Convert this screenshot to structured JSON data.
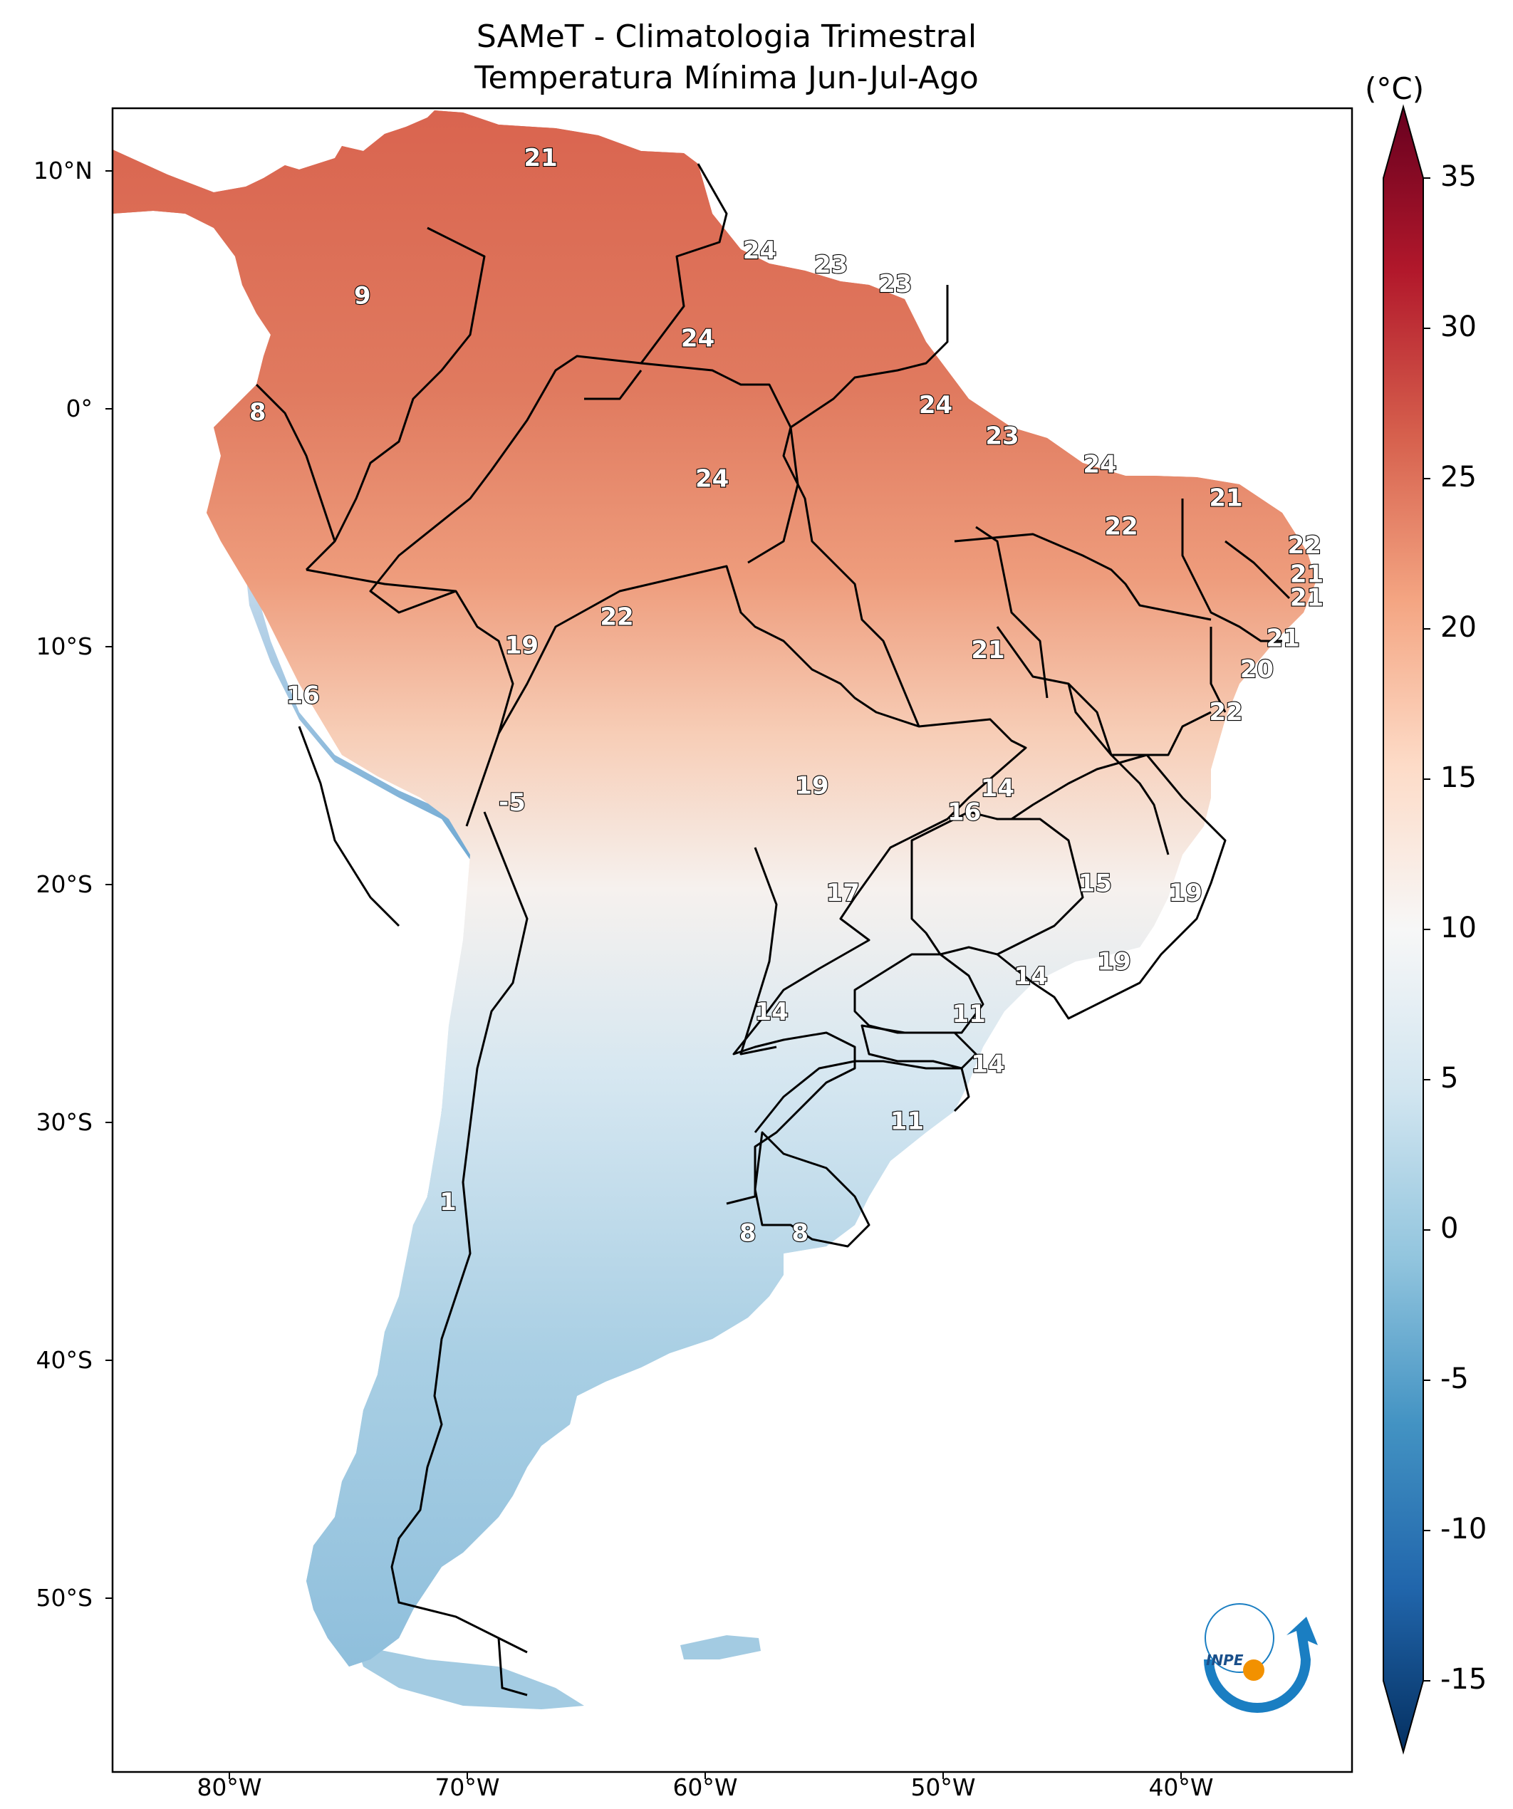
{
  "title": {
    "line1": "SAMeT - Climatologia Trimestral",
    "line2": "Temperatura Mínima   Jun-Jul-Ago"
  },
  "colorbar": {
    "unit": "(°C)",
    "ticks": [
      "35",
      "30",
      "25",
      "20",
      "15",
      "10",
      "5",
      "0",
      "-5",
      "-10",
      "-15"
    ],
    "range": [
      -15,
      35
    ],
    "colors": [
      "#053061",
      "#2166ac",
      "#4393c3",
      "#92c5de",
      "#d1e5f0",
      "#f7f7f7",
      "#fddbc7",
      "#f4a582",
      "#d6604d",
      "#b2182b",
      "#67001f"
    ]
  },
  "axes": {
    "lat_ticks": [
      "10°N",
      "0°",
      "10°S",
      "20°S",
      "30°S",
      "40°S",
      "50°S"
    ],
    "lon_ticks": [
      "80°W",
      "70°W",
      "60°W",
      "50°W",
      "40°W"
    ]
  },
  "contour_labels": [
    {
      "text": "21",
      "lon": -67.0,
      "lat": 10.5
    },
    {
      "text": "9",
      "lon": -74.5,
      "lat": 4.7
    },
    {
      "text": "8",
      "lon": -78.9,
      "lat": -0.2
    },
    {
      "text": "24",
      "lon": -57.8,
      "lat": 6.6
    },
    {
      "text": "23",
      "lon": -54.8,
      "lat": 6.0
    },
    {
      "text": "23",
      "lon": -52.1,
      "lat": 5.2
    },
    {
      "text": "24",
      "lon": -60.4,
      "lat": 2.9
    },
    {
      "text": "24",
      "lon": -50.4,
      "lat": 0.1
    },
    {
      "text": "23",
      "lon": -47.6,
      "lat": -1.2
    },
    {
      "text": "24",
      "lon": -59.8,
      "lat": -3.0
    },
    {
      "text": "24",
      "lon": -43.5,
      "lat": -2.4
    },
    {
      "text": "21",
      "lon": -38.2,
      "lat": -3.8
    },
    {
      "text": "22",
      "lon": -42.6,
      "lat": -5.0
    },
    {
      "text": "22",
      "lon": -34.9,
      "lat": -5.8
    },
    {
      "text": "21",
      "lon": -34.8,
      "lat": -7.0
    },
    {
      "text": "21",
      "lon": -34.8,
      "lat": -8.0
    },
    {
      "text": "22",
      "lon": -63.8,
      "lat": -8.8
    },
    {
      "text": "19",
      "lon": -67.8,
      "lat": -10.0
    },
    {
      "text": "21",
      "lon": -48.2,
      "lat": -10.2
    },
    {
      "text": "21",
      "lon": -35.8,
      "lat": -9.7
    },
    {
      "text": "20",
      "lon": -36.9,
      "lat": -11.0
    },
    {
      "text": "16",
      "lon": -77.0,
      "lat": -12.1
    },
    {
      "text": "22",
      "lon": -38.2,
      "lat": -12.8
    },
    {
      "text": "19",
      "lon": -55.6,
      "lat": -15.9
    },
    {
      "text": "14",
      "lon": -47.8,
      "lat": -16.0
    },
    {
      "text": "16",
      "lon": -49.2,
      "lat": -17.0
    },
    {
      "text": "-5",
      "lon": -68.2,
      "lat": -16.6
    },
    {
      "text": "15",
      "lon": -43.7,
      "lat": -20.0
    },
    {
      "text": "19",
      "lon": -39.9,
      "lat": -20.4
    },
    {
      "text": "17",
      "lon": -54.3,
      "lat": -20.4
    },
    {
      "text": "19",
      "lon": -42.9,
      "lat": -23.3
    },
    {
      "text": "14",
      "lon": -46.4,
      "lat": -23.9
    },
    {
      "text": "14",
      "lon": -57.3,
      "lat": -25.4
    },
    {
      "text": "11",
      "lon": -49.0,
      "lat": -25.5
    },
    {
      "text": "14",
      "lon": -48.2,
      "lat": -27.6
    },
    {
      "text": "11",
      "lon": -51.6,
      "lat": -30.0
    },
    {
      "text": "1",
      "lon": -70.9,
      "lat": -33.4
    },
    {
      "text": "8",
      "lon": -58.3,
      "lat": -34.7
    },
    {
      "text": "8",
      "lon": -56.1,
      "lat": -34.7
    }
  ],
  "logo": {
    "text": "INPE"
  }
}
